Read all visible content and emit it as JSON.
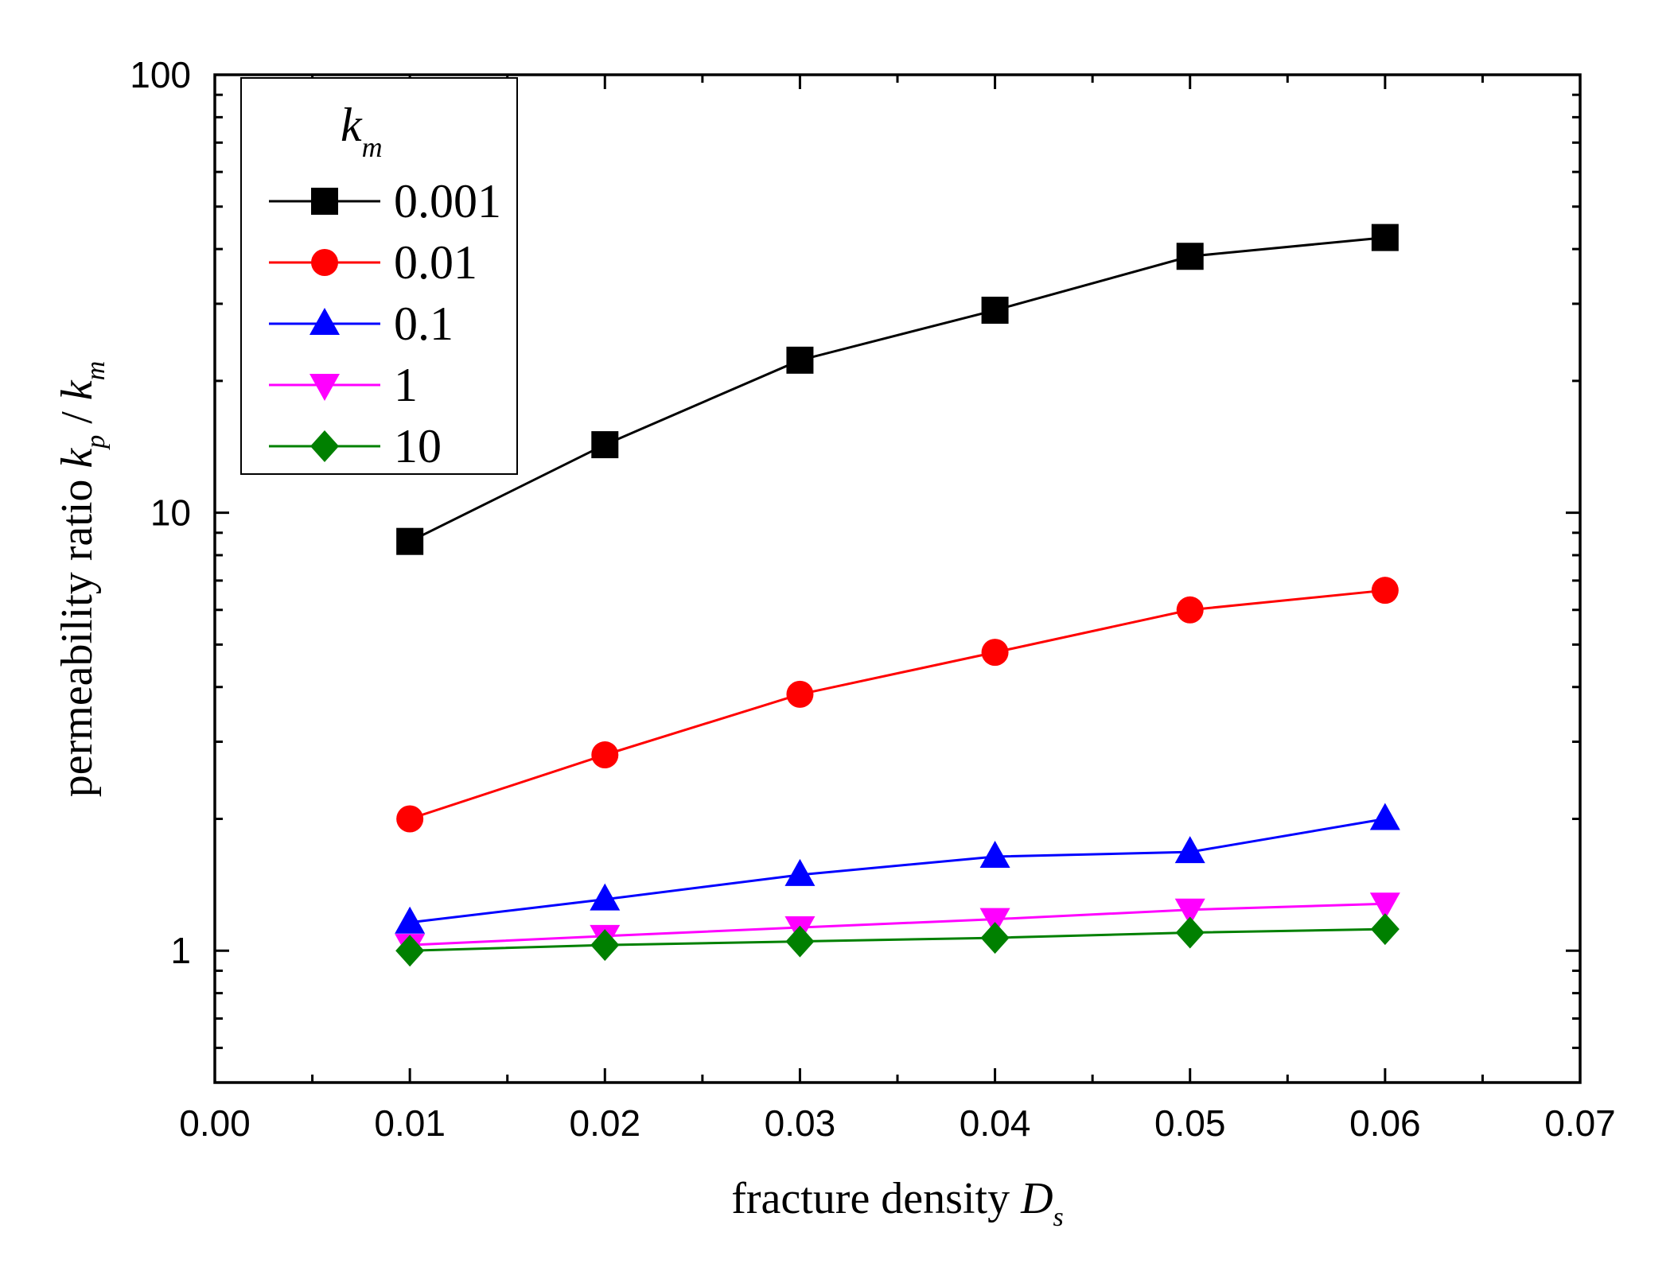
{
  "chart_data": {
    "type": "line",
    "x": [
      0.01,
      0.02,
      0.03,
      0.04,
      0.05,
      0.06
    ],
    "xlim": [
      0.0,
      0.07
    ],
    "xticks": [
      "0.00",
      "0.01",
      "0.02",
      "0.03",
      "0.04",
      "0.05",
      "0.06",
      "0.07"
    ],
    "ylim": [
      0.5,
      100
    ],
    "yscale": "log",
    "yticks": [
      "1",
      "10",
      "100"
    ],
    "xlabel": {
      "main": "fracture density ",
      "var": "D",
      "sub": "s"
    },
    "ylabel": {
      "main": "permeability ratio ",
      "var1": "k",
      "sub1": "p",
      "slash": " / ",
      "var2": "k",
      "sub2": "m"
    },
    "legend": {
      "title_var": "k",
      "title_sub": "m",
      "position": "top-left"
    },
    "series": [
      {
        "name": "0.001",
        "color": "#000000",
        "marker": "square",
        "values": [
          8.6,
          14.3,
          22.3,
          29.0,
          38.5,
          42.5
        ]
      },
      {
        "name": "0.01",
        "color": "#ff0000",
        "marker": "circle",
        "values": [
          2.0,
          2.8,
          3.85,
          4.8,
          6.0,
          6.65
        ]
      },
      {
        "name": "0.1",
        "color": "#0000ff",
        "marker": "triangle-up",
        "values": [
          1.16,
          1.31,
          1.49,
          1.64,
          1.68,
          2.0
        ]
      },
      {
        "name": "1",
        "color": "#ff00ff",
        "marker": "triangle-down",
        "values": [
          1.03,
          1.08,
          1.13,
          1.18,
          1.24,
          1.28
        ]
      },
      {
        "name": "10",
        "color": "#008000",
        "marker": "diamond",
        "values": [
          1.0,
          1.03,
          1.05,
          1.07,
          1.1,
          1.12
        ]
      }
    ]
  }
}
